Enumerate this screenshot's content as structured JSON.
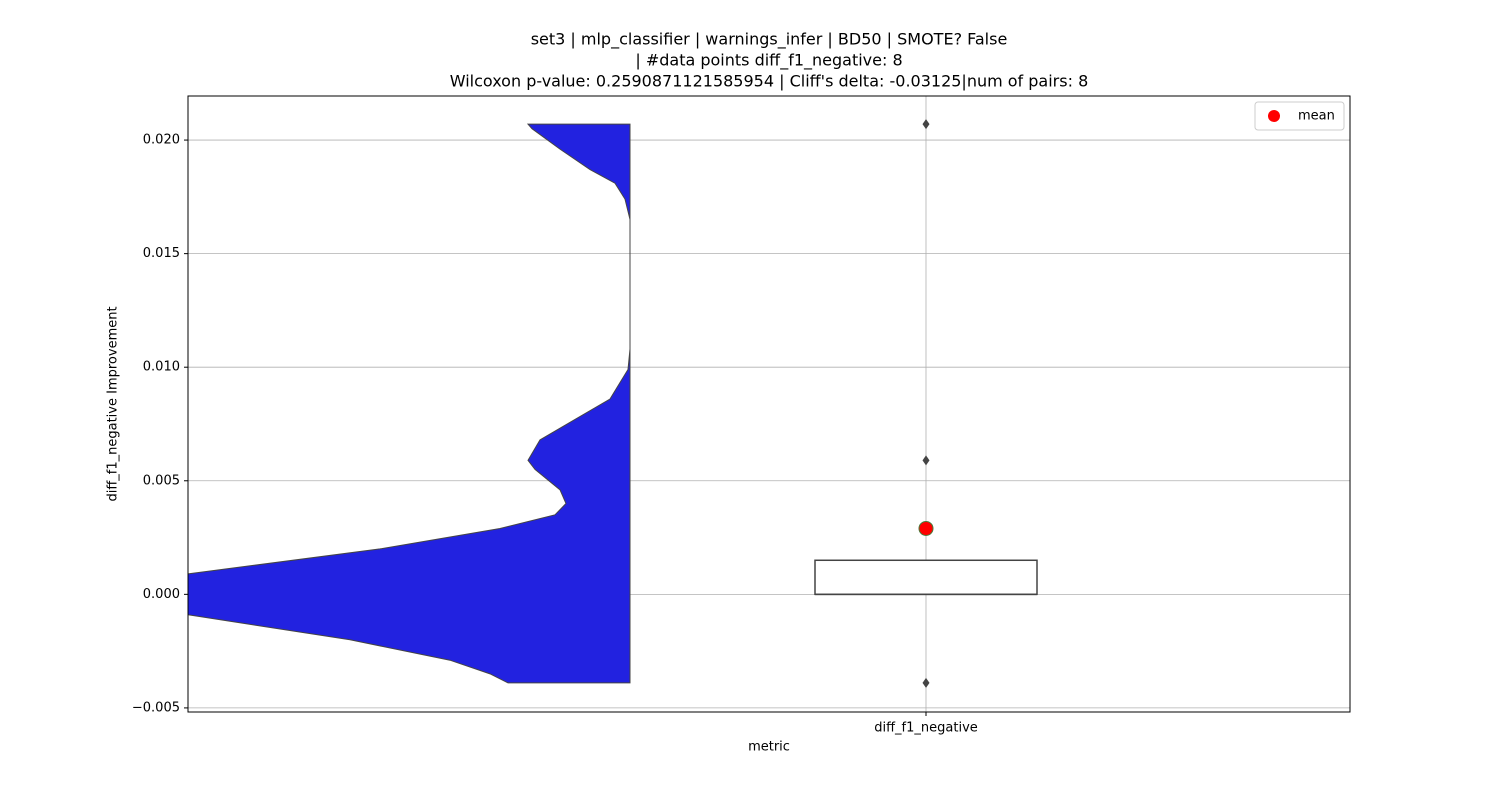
{
  "chart_data": {
    "type": "violin_box",
    "title": [
      "set3 | mlp_classifier | warnings_infer | BD50 | SMOTE? False",
      "| #data points diff_f1_negative: 8",
      "Wilcoxon p-value: 0.2590871121585954 | Cliff's delta: -0.03125|num of pairs: 8"
    ],
    "x_label": "metric",
    "y_label": "diff_f1_negative Improvement",
    "categories": [
      "diff_f1_negative"
    ],
    "ylim": [
      -0.00518,
      0.02194
    ],
    "yticks": [
      {
        "value": -0.005,
        "label": "−0.005"
      },
      {
        "value": 0,
        "label": "0.000"
      },
      {
        "value": 0.005,
        "label": "0.005"
      },
      {
        "value": 0.01,
        "label": "0.010"
      },
      {
        "value": 0.015,
        "label": "0.015"
      },
      {
        "value": 0.02,
        "label": "0.020"
      }
    ],
    "grid": true,
    "violin": {
      "color": "#2222e0",
      "y": [
        0.0207,
        0.0205,
        0.0196,
        0.0187,
        0.0181,
        0.0174,
        0.0165,
        0.0108,
        0.0099,
        0.0086,
        0.0077,
        0.0068,
        0.0059,
        0.0055,
        0.0046,
        0.004,
        0.0035,
        0.0029,
        0.002,
        0.0009,
        0,
        -0.0009,
        -0.002,
        -0.0029,
        -0.0035,
        -0.0039
      ],
      "width": [
        1.02,
        0.98,
        0.7,
        0.4,
        0.15,
        0.05,
        0,
        0,
        0.02,
        0.2,
        0.55,
        0.9,
        1.02,
        0.95,
        0.7,
        0.64,
        0.75,
        1.3,
        2.5,
        4.42,
        5.6,
        4.42,
        2.8,
        1.8,
        1.4,
        1.22
      ]
    },
    "box": {
      "q1": 0,
      "median": 0,
      "q3": 0.0015,
      "whisker_low": 0,
      "whisker_high": 0.0015
    },
    "outliers": [
      0.0207,
      0.0059,
      -0.0039
    ],
    "mean": 0.0029,
    "mean_color": "#ff0000",
    "legend": "mean",
    "legend_position": "upper right"
  }
}
